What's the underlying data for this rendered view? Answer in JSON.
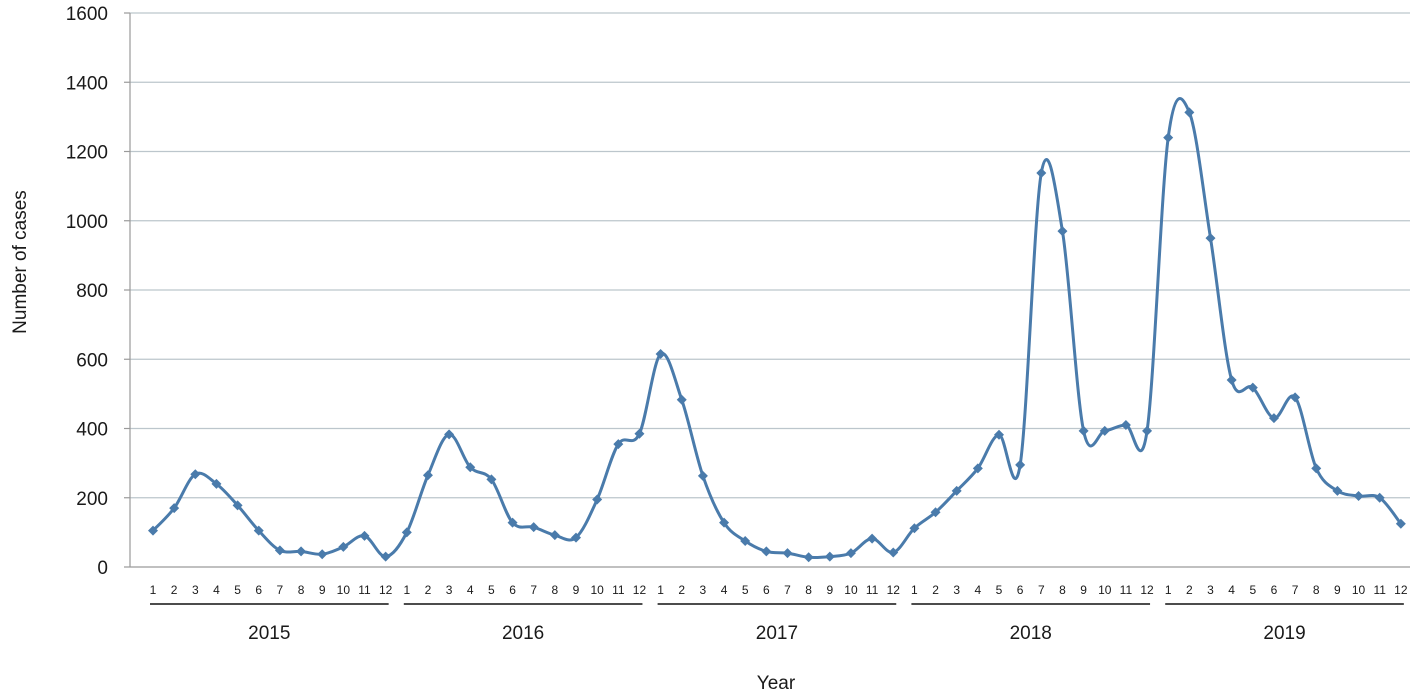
{
  "chart_data": {
    "type": "line",
    "title": "",
    "xlabel": "Year",
    "ylabel": "Number of cases",
    "ylim": [
      0,
      1600
    ],
    "yticks": [
      0,
      200,
      400,
      600,
      800,
      1000,
      1200,
      1400,
      1600
    ],
    "grid": true,
    "legend": "none",
    "line_color": "#4a7bab",
    "years": [
      "2015",
      "2016",
      "2017",
      "2018",
      "2019"
    ],
    "months": [
      "1",
      "2",
      "3",
      "4",
      "5",
      "6",
      "7",
      "8",
      "9",
      "10",
      "11",
      "12"
    ],
    "series": [
      {
        "values": [
          105,
          170,
          268,
          240,
          178,
          105,
          48,
          45,
          37,
          58,
          90,
          30,
          100,
          265,
          383,
          288,
          253,
          128,
          115,
          92,
          85,
          195,
          355,
          385,
          615,
          483,
          263,
          128,
          75,
          45,
          40,
          28,
          30,
          40,
          82,
          42,
          112,
          158,
          220,
          285,
          382,
          295,
          1138,
          970,
          393,
          393,
          410,
          393,
          1240,
          1313,
          950,
          540,
          518,
          430,
          490,
          285,
          220,
          205,
          200,
          125
        ]
      }
    ]
  }
}
